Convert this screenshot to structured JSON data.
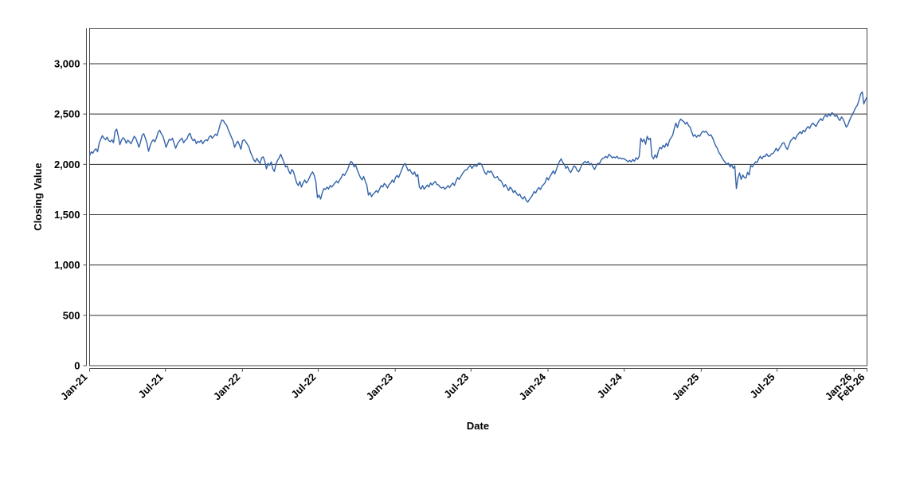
{
  "chart_data": {
    "type": "line",
    "xlabel": "Date",
    "ylabel": "Closing Value",
    "grid": "horizontal",
    "legend": "none",
    "x_axis": {
      "tick_labels": [
        "Jan-21",
        "Jul-21",
        "Jan-22",
        "Jul-22",
        "Jan-23",
        "Jul-23",
        "Jan-24",
        "Jul-24",
        "Jan-25",
        "Jul-25",
        "Jan-26",
        "Feb-26"
      ],
      "label_rotation_deg": 45
    },
    "y_axis": {
      "ticks": [
        0,
        500,
        1000,
        1500,
        2000,
        2500,
        3000
      ],
      "tick_labels": [
        "0",
        "500",
        "1,000",
        "1,500",
        "2,000",
        "2,500",
        "3,000"
      ],
      "ylim": [
        0,
        3356
      ]
    },
    "colors": {
      "line": "#3363a8",
      "grid": "#2e2e2e",
      "border": "#4a4a4a",
      "axis": "#4a4a4a",
      "text": "#000000",
      "background": "#ffffff"
    },
    "series": [
      {
        "name": "Closing Value",
        "sampling": "uniform-in-time samples from Jan-2021 through Feb-2026 (daily closing values, sampled)",
        "values": [
          2085,
          2125,
          2110,
          2140,
          2155,
          2125,
          2210,
          2250,
          2285,
          2260,
          2245,
          2270,
          2235,
          2225,
          2245,
          2215,
          2330,
          2350,
          2280,
          2195,
          2240,
          2265,
          2250,
          2210,
          2240,
          2225,
          2205,
          2240,
          2280,
          2260,
          2215,
          2170,
          2225,
          2290,
          2305,
          2260,
          2210,
          2130,
          2185,
          2225,
          2245,
          2225,
          2265,
          2320,
          2340,
          2305,
          2280,
          2230,
          2170,
          2210,
          2250,
          2240,
          2260,
          2210,
          2160,
          2200,
          2225,
          2245,
          2260,
          2215,
          2240,
          2250,
          2290,
          2310,
          2260,
          2235,
          2250,
          2205,
          2230,
          2220,
          2240,
          2205,
          2230,
          2245,
          2235,
          2270,
          2285,
          2260,
          2280,
          2300,
          2285,
          2340,
          2400,
          2440,
          2435,
          2405,
          2390,
          2345,
          2310,
          2270,
          2235,
          2170,
          2205,
          2230,
          2195,
          2150,
          2235,
          2245,
          2225,
          2200,
          2175,
          2120,
          2085,
          2045,
          2025,
          2060,
          2030,
          2010,
          2065,
          2075,
          2030,
          1955,
          2010,
          1990,
          2025,
          1955,
          1930,
          2005,
          2040,
          2065,
          2100,
          2060,
          2020,
          1975,
          1985,
          1935,
          1905,
          1950,
          1925,
          1870,
          1815,
          1790,
          1830,
          1775,
          1815,
          1845,
          1815,
          1835,
          1870,
          1905,
          1925,
          1890,
          1830,
          1670,
          1695,
          1655,
          1715,
          1760,
          1750,
          1775,
          1755,
          1790,
          1775,
          1795,
          1815,
          1835,
          1815,
          1845,
          1870,
          1905,
          1890,
          1920,
          1950,
          1995,
          2030,
          2015,
          1975,
          1995,
          1945,
          1905,
          1870,
          1845,
          1880,
          1835,
          1795,
          1695,
          1720,
          1680,
          1705,
          1720,
          1740,
          1720,
          1755,
          1790,
          1775,
          1810,
          1795,
          1765,
          1800,
          1815,
          1845,
          1820,
          1870,
          1890,
          1870,
          1910,
          1950,
          1990,
          2010,
          1975,
          1935,
          1950,
          1920,
          1900,
          1925,
          1880,
          1900,
          1775,
          1755,
          1790,
          1755,
          1775,
          1795,
          1775,
          1815,
          1795,
          1815,
          1830,
          1800,
          1795,
          1775,
          1765,
          1775,
          1755,
          1770,
          1790,
          1770,
          1795,
          1815,
          1790,
          1835,
          1870,
          1850,
          1880,
          1905,
          1930,
          1945,
          1950,
          1975,
          1990,
          1960,
          1985,
          1990,
          1980,
          2010,
          2012,
          2000,
          1960,
          1920,
          1900,
          1935,
          1920,
          1935,
          1905,
          1870,
          1868,
          1880,
          1845,
          1842,
          1815,
          1775,
          1800,
          1775,
          1740,
          1775,
          1755,
          1720,
          1740,
          1710,
          1690,
          1705,
          1670,
          1655,
          1680,
          1645,
          1625,
          1650,
          1670,
          1695,
          1730,
          1715,
          1750,
          1770,
          1750,
          1785,
          1800,
          1820,
          1870,
          1845,
          1880,
          1905,
          1935,
          1905,
          1950,
          1995,
          2030,
          2055,
          2020,
          2000,
          1960,
          1980,
          1940,
          1920,
          1950,
          1985,
          1975,
          1940,
          1925,
          1960,
          1995,
          2015,
          2030,
          2015,
          2030,
          1995,
          2010,
          1975,
          1950,
          1985,
          2010,
          2005,
          2040,
          2060,
          2065,
          2080,
          2065,
          2100,
          2085,
          2065,
          2075,
          2065,
          2080,
          2060,
          2065,
          2055,
          2060,
          2050,
          2040,
          2025,
          2040,
          2025,
          2050,
          2030,
          2065,
          2050,
          2080,
          2260,
          2225,
          2250,
          2200,
          2280,
          2245,
          2260,
          2080,
          2055,
          2095,
          2065,
          2130,
          2170,
          2155,
          2190,
          2170,
          2210,
          2180,
          2240,
          2265,
          2290,
          2355,
          2410,
          2365,
          2420,
          2450,
          2435,
          2425,
          2400,
          2420,
          2385,
          2370,
          2320,
          2280,
          2295,
          2270,
          2290,
          2280,
          2310,
          2330,
          2320,
          2330,
          2305,
          2285,
          2295,
          2265,
          2225,
          2185,
          2160,
          2120,
          2095,
          2065,
          2040,
          2020,
          2000,
          2013,
          1975,
          2000,
          1960,
          1985,
          1760,
          1865,
          1915,
          1850,
          1895,
          1870,
          1865,
          1920,
          1895,
          1990,
          1975,
          2000,
          2025,
          2020,
          2055,
          2080,
          2055,
          2080,
          2078,
          2105,
          2080,
          2082,
          2105,
          2108,
          2130,
          2160,
          2132,
          2160,
          2185,
          2212,
          2215,
          2172,
          2148,
          2190,
          2233,
          2250,
          2270,
          2250,
          2285,
          2305,
          2323,
          2305,
          2338,
          2323,
          2357,
          2376,
          2357,
          2392,
          2410,
          2392,
          2376,
          2410,
          2436,
          2455,
          2436,
          2471,
          2490,
          2471,
          2502,
          2481,
          2515,
          2497,
          2476,
          2490,
          2455,
          2436,
          2471,
          2450,
          2410,
          2370,
          2392,
          2436,
          2471,
          2502,
          2534,
          2568,
          2590,
          2640,
          2700,
          2720,
          2600,
          2640,
          2670
        ]
      }
    ]
  }
}
